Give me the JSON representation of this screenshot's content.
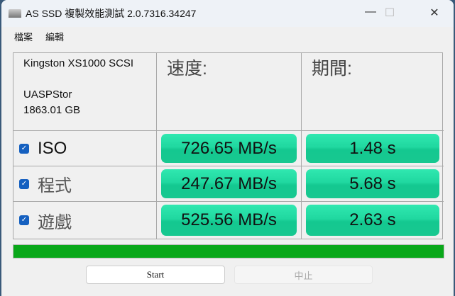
{
  "window": {
    "title": "AS SSD 複製效能測試 2.0.7316.34247",
    "minimize": "—",
    "maximize": "☐",
    "close": "✕"
  },
  "menu": [
    "檔案",
    "編輯"
  ],
  "drive": {
    "model": "Kingston XS1000 SCSI",
    "driver": "UASPStor",
    "size": "1863.01 GB"
  },
  "headers": {
    "speed": "速度:",
    "duration": "期間:"
  },
  "rows": [
    {
      "label": "ISO",
      "checked": true,
      "speed": "726.65 MB/s",
      "time": "1.48 s"
    },
    {
      "label": "程式",
      "checked": true,
      "speed": "247.67 MB/s",
      "time": "5.68 s"
    },
    {
      "label": "遊戲",
      "checked": true,
      "speed": "525.56 MB/s",
      "time": "2.63 s"
    }
  ],
  "progress": {
    "percent": 100,
    "color": "#0aa81a"
  },
  "buttons": {
    "start": "Start",
    "stop": "中止"
  }
}
